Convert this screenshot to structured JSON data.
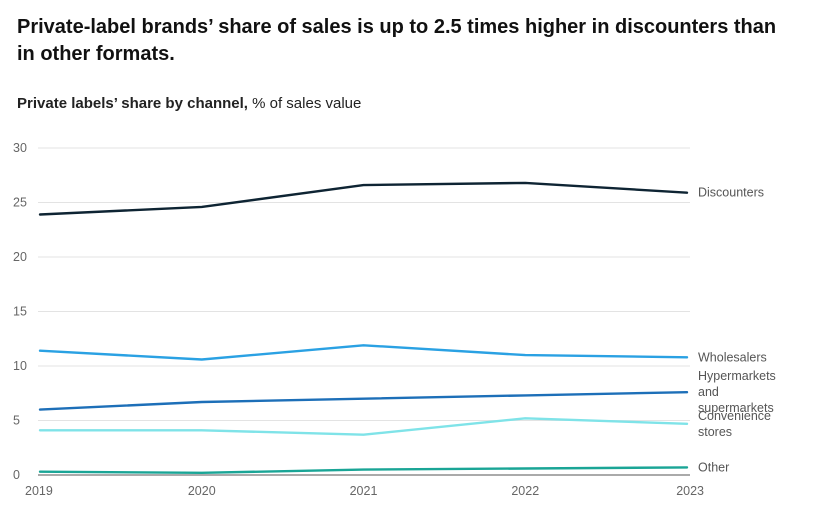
{
  "header": {
    "title": "Private-label brands’ share of sales is up to 2.5 times higher in discounters than in other formats.",
    "subtitle_bold": "Private labels’ share by channel,",
    "subtitle_rest": " % of sales value"
  },
  "chart_data": {
    "type": "line",
    "title": "Private labels’ share by channel",
    "ylabel": "% of sales value",
    "xlabel": "",
    "x": [
      "2019",
      "2020",
      "2021",
      "2022",
      "2023"
    ],
    "ylim": [
      0,
      30
    ],
    "yticks": [
      0,
      5,
      10,
      15,
      20,
      25,
      30
    ],
    "grid": true,
    "series": [
      {
        "name": "Discounters",
        "label_lines": [
          "Discounters"
        ],
        "color": "#0e2433",
        "values": [
          23.9,
          24.6,
          26.6,
          26.8,
          25.9
        ]
      },
      {
        "name": "Wholesalers",
        "label_lines": [
          "Wholesalers"
        ],
        "color": "#2aa1e3",
        "values": [
          11.4,
          10.6,
          11.9,
          11.0,
          10.8
        ]
      },
      {
        "name": "Hypermarkets and supermarkets",
        "label_lines": [
          "Hypermarkets",
          "and",
          "supermarkets"
        ],
        "color": "#1d6fb8",
        "values": [
          6.0,
          6.7,
          7.0,
          7.3,
          7.6
        ]
      },
      {
        "name": "Convenience stores",
        "label_lines": [
          "Convenience",
          "stores"
        ],
        "color": "#7fe3e8",
        "values": [
          4.1,
          4.1,
          3.7,
          5.2,
          4.7
        ]
      },
      {
        "name": "Other",
        "label_lines": [
          "Other"
        ],
        "color": "#1aa596",
        "values": [
          0.3,
          0.2,
          0.5,
          0.6,
          0.7
        ]
      }
    ]
  }
}
